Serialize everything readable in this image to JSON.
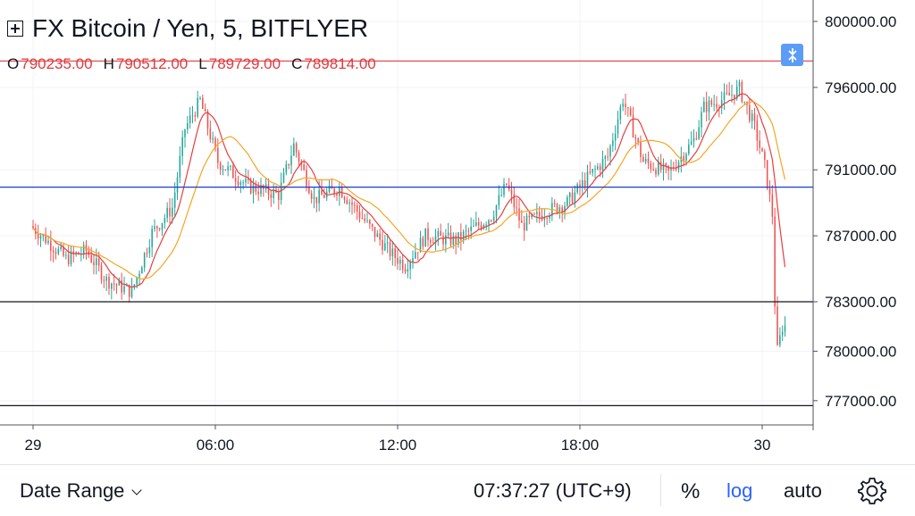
{
  "symbol_title": "FX Bitcoin / Yen, 5, BITFLYER",
  "ohlc": {
    "o_label": "O",
    "o_value": "790235.00",
    "h_label": "H",
    "h_value": "790512.00",
    "l_label": "L",
    "l_value": "789729.00",
    "c_label": "C",
    "c_value": "789814.00"
  },
  "footer": {
    "date_range": "Date Range",
    "clock": "07:37:27 (UTC+9)",
    "percent": "%",
    "log": "log",
    "auto": "auto"
  },
  "colors": {
    "up": "#26a69a",
    "down": "#ef5350",
    "ma_fast": "#e83e3e",
    "ma_slow": "#f5a623",
    "blue_line": "#1a3bd6",
    "accent": "#2962ff"
  },
  "icons": [
    "expand-icon",
    "scroll-to-latest-icon",
    "chevron-down-icon",
    "gear-icon"
  ],
  "chart_data": {
    "type": "candlestick",
    "interval_minutes": 5,
    "x_range": [
      "2018-04-29 00:00",
      "2018-04-30 00:45"
    ],
    "x_ticks": [
      {
        "label": "29",
        "t": "2018-04-29 00:00"
      },
      {
        "label": "06:00",
        "t": "2018-04-29 06:00"
      },
      {
        "label": "12:00",
        "t": "2018-04-29 12:00"
      },
      {
        "label": "18:00",
        "t": "2018-04-29 18:00"
      },
      {
        "label": "30",
        "t": "2018-04-30 00:00"
      }
    ],
    "y_ticks": [
      "800000.00",
      "796000.00",
      "791000.00",
      "787000.00",
      "783000.00",
      "780000.00",
      "777000.00"
    ],
    "ylim": [
      776000,
      801300
    ],
    "horizontal_lines": [
      {
        "price": 797600,
        "color": "#e03a3e"
      },
      {
        "price": 789950,
        "color": "#1a3bd6"
      },
      {
        "price": 783000,
        "color": "#131722"
      },
      {
        "price": 776700,
        "color": "#131722"
      }
    ],
    "anchors": [
      [
        "2018-04-29 00:00",
        787600
      ],
      [
        "2018-04-29 00:30",
        786800
      ],
      [
        "2018-04-29 01:10",
        785600
      ],
      [
        "2018-04-29 01:50",
        786100
      ],
      [
        "2018-04-29 02:30",
        784300
      ],
      [
        "2018-04-29 03:20",
        783600
      ],
      [
        "2018-04-29 04:00",
        787200
      ],
      [
        "2018-04-29 04:40",
        788700
      ],
      [
        "2018-04-29 05:05",
        793500
      ],
      [
        "2018-04-29 05:35",
        795200
      ],
      [
        "2018-04-29 06:10",
        791500
      ],
      [
        "2018-04-29 07:10",
        790000
      ],
      [
        "2018-04-29 08:10",
        789500
      ],
      [
        "2018-04-29 08:40",
        792500
      ],
      [
        "2018-04-29 09:20",
        789200
      ],
      [
        "2018-04-29 10:10",
        789900
      ],
      [
        "2018-04-29 11:10",
        787500
      ],
      [
        "2018-04-29 11:50",
        786000
      ],
      [
        "2018-04-29 12:20",
        785200
      ],
      [
        "2018-04-29 13:00",
        787000
      ],
      [
        "2018-04-29 14:00",
        786700
      ],
      [
        "2018-04-29 15:10",
        788200
      ],
      [
        "2018-04-29 15:40",
        790100
      ],
      [
        "2018-04-29 16:10",
        787600
      ],
      [
        "2018-04-29 17:00",
        788500
      ],
      [
        "2018-04-29 17:40",
        789000
      ],
      [
        "2018-04-29 18:20",
        790500
      ],
      [
        "2018-04-29 19:00",
        791800
      ],
      [
        "2018-04-29 19:30",
        795300
      ],
      [
        "2018-04-29 20:10",
        791500
      ],
      [
        "2018-04-29 21:00",
        790800
      ],
      [
        "2018-04-29 21:50",
        792800
      ],
      [
        "2018-04-29 22:10",
        794800
      ],
      [
        "2018-04-29 22:50",
        795300
      ],
      [
        "2018-04-29 23:20",
        795900
      ],
      [
        "2018-04-29 23:50",
        793600
      ],
      [
        "2018-04-30 00:10",
        791200
      ],
      [
        "2018-04-30 00:25",
        788300
      ],
      [
        "2018-04-30 00:33",
        779700
      ],
      [
        "2018-04-30 00:45",
        781500
      ]
    ],
    "moving_averages": [
      {
        "color": "#e83e3e",
        "period_bars": 9
      },
      {
        "color": "#f5a623",
        "period_bars": 21
      }
    ]
  }
}
